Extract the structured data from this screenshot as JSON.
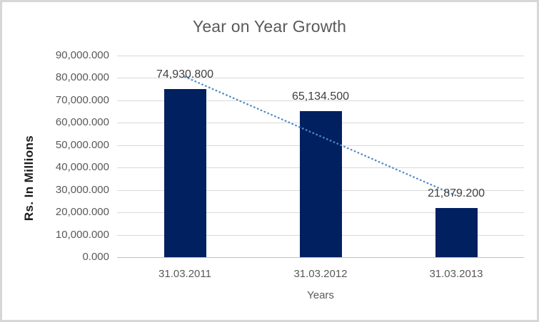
{
  "window": {
    "background": "#ffffff",
    "border_color": "#d7d7d7"
  },
  "chart_data": {
    "type": "bar",
    "title": "Year on Year Growth",
    "xlabel": "Years",
    "ylabel": "Rs. In Millions",
    "categories": [
      "31.03.2011",
      "31.03.2012",
      "31.03.2013"
    ],
    "values": [
      74930.8,
      65134.5,
      21879.2
    ],
    "value_labels": [
      "74,930.800",
      "65,134.500",
      "21,879.200"
    ],
    "ylim": [
      0,
      90000
    ],
    "ytick_step": 10000,
    "ytick_labels": [
      "0.000",
      "10,000.000",
      "20,000.000",
      "30,000.000",
      "40,000.000",
      "50,000.000",
      "60,000.000",
      "70,000.000",
      "80,000.000",
      "90,000.000"
    ],
    "grid": true,
    "legend": false,
    "bar_color": "#002060",
    "gridline_color": "#d9d9d9",
    "axis_text_color": "#595959",
    "trendline": {
      "type": "linear",
      "style": "dotted",
      "color": "#4f8bc9",
      "start_value": 80507,
      "end_value": 27456
    }
  }
}
